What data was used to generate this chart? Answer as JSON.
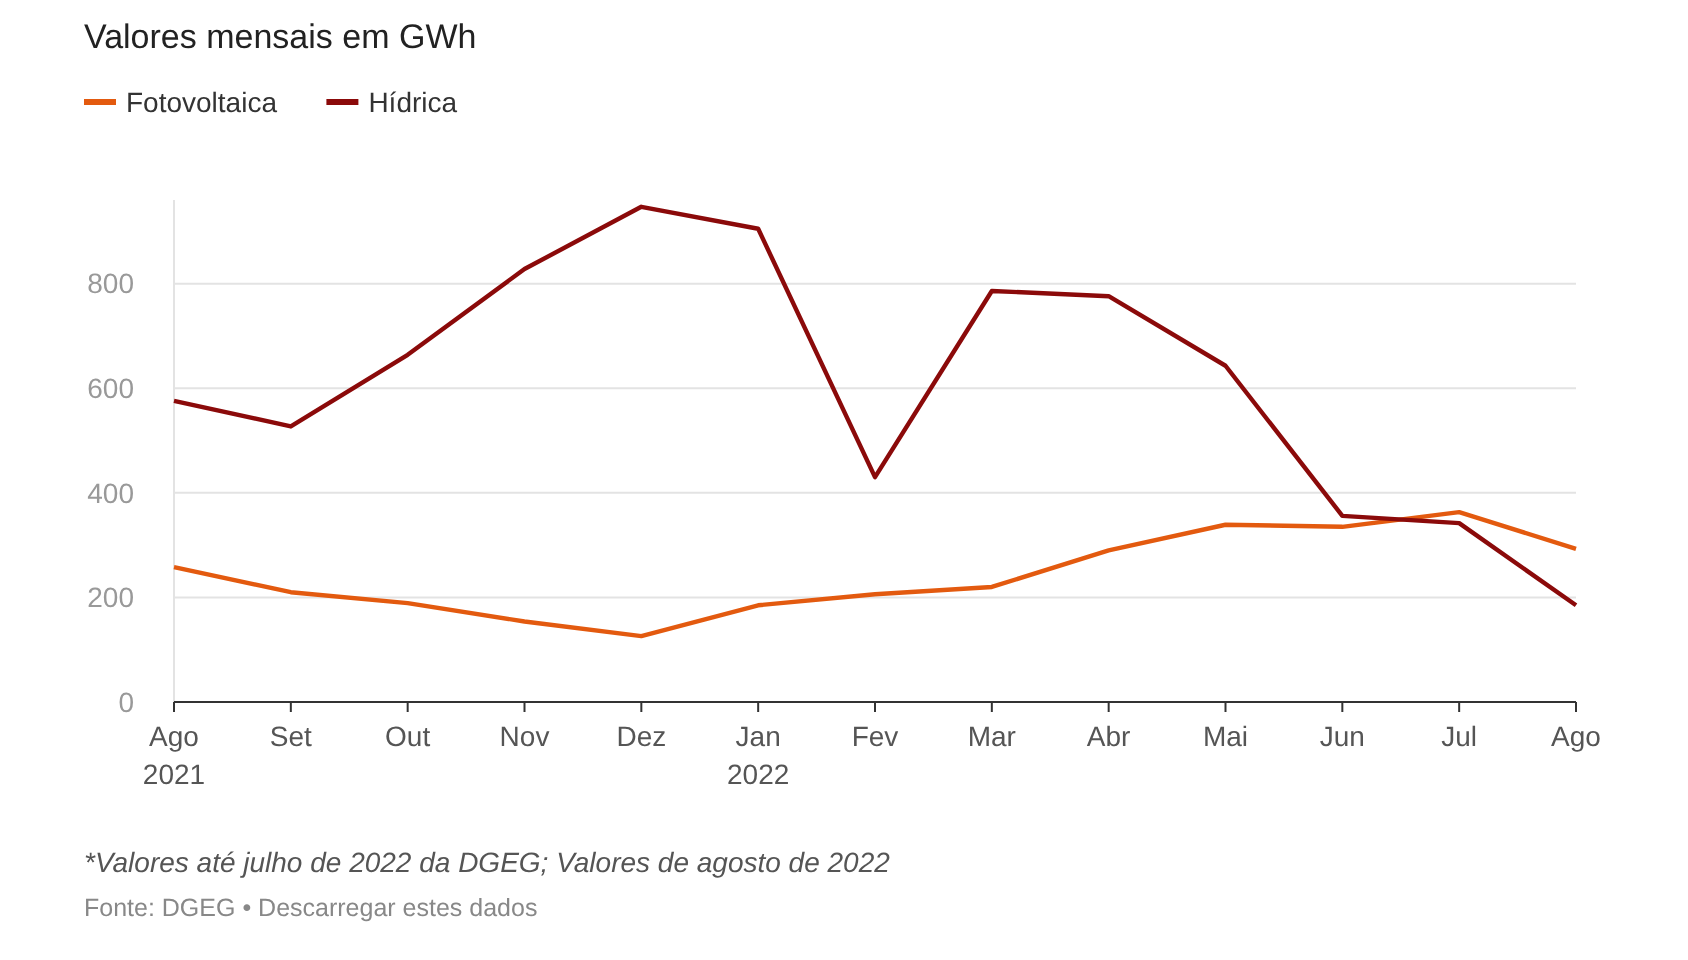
{
  "chart_data": {
    "type": "line",
    "title": "Valores mensais em GWh",
    "categories": [
      "Ago\n2021",
      "Set",
      "Out",
      "Nov",
      "Dez",
      "Jan\n2022",
      "Fev",
      "Mar",
      "Abr",
      "Mai",
      "Jun",
      "Jul",
      "Ago"
    ],
    "series": [
      {
        "name": "Fotovoltaica",
        "color": "#e35a0f",
        "values": [
          258,
          210,
          189,
          154,
          126,
          185,
          206,
          220,
          290,
          339,
          335,
          363,
          293
        ]
      },
      {
        "name": "Hídrica",
        "color": "#8b0a0a",
        "values": [
          576,
          527,
          664,
          828,
          947,
          905,
          430,
          786,
          776,
          643,
          356,
          342,
          185
        ]
      }
    ],
    "ylim": [
      0,
      960
    ],
    "yticks": [
      0,
      200,
      400,
      600,
      800
    ],
    "grid": "y",
    "legend": "top left",
    "marker": "none",
    "line_style": "solid",
    "annotations": [
      "*Valores até julho de 2022 da DGEG; Valores de agosto de 2022",
      "Fonte: DGEG • Descarregar estes dados"
    ]
  }
}
